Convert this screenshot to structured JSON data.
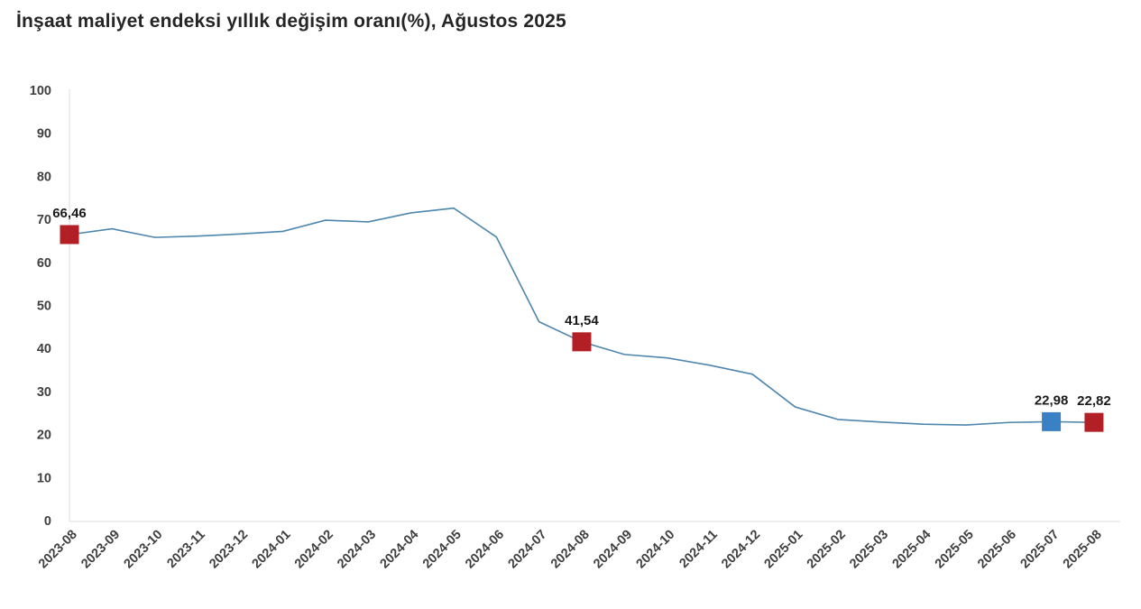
{
  "title": "İnşaat maliyet endeksi yıllık değişim oranı(%), Ağustos 2025",
  "chart_data": {
    "type": "line",
    "title": "İnşaat maliyet endeksi yıllık değişim oranı(%), Ağustos 2025",
    "xlabel": "",
    "ylabel": "",
    "ylim": [
      0,
      100
    ],
    "y_ticks": [
      0,
      10,
      20,
      30,
      40,
      50,
      60,
      70,
      80,
      90,
      100
    ],
    "grid": false,
    "legend_position": "none",
    "line_color": "#4e86ac",
    "axis_line_color": "#dcdcdc",
    "categories": [
      "2023-08",
      "2023-09",
      "2023-10",
      "2023-11",
      "2023-12",
      "2024-01",
      "2024-02",
      "2024-03",
      "2024-04",
      "2024-05",
      "2024-06",
      "2024-07",
      "2024-08",
      "2024-09",
      "2024-10",
      "2024-11",
      "2024-12",
      "2025-01",
      "2025-02",
      "2025-03",
      "2025-04",
      "2025-05",
      "2025-06",
      "2025-07",
      "2025-08"
    ],
    "values": [
      66.46,
      67.8,
      65.8,
      66.1,
      66.6,
      67.2,
      69.8,
      69.4,
      71.5,
      72.6,
      65.9,
      46.2,
      41.54,
      38.6,
      37.8,
      36.1,
      34.0,
      26.4,
      23.5,
      22.9,
      22.4,
      22.2,
      22.8,
      22.98,
      22.82
    ],
    "annotated_points": [
      {
        "index": 0,
        "category": "2023-08",
        "value": 66.46,
        "label": "66,46",
        "marker_color": "#b21f24"
      },
      {
        "index": 12,
        "category": "2024-08",
        "value": 41.54,
        "label": "41,54",
        "marker_color": "#b21f24"
      },
      {
        "index": 23,
        "category": "2025-07",
        "value": 22.98,
        "label": "22,98",
        "marker_color": "#3a80c4"
      },
      {
        "index": 24,
        "category": "2025-08",
        "value": 22.82,
        "label": "22,82",
        "marker_color": "#b21f24"
      }
    ]
  }
}
